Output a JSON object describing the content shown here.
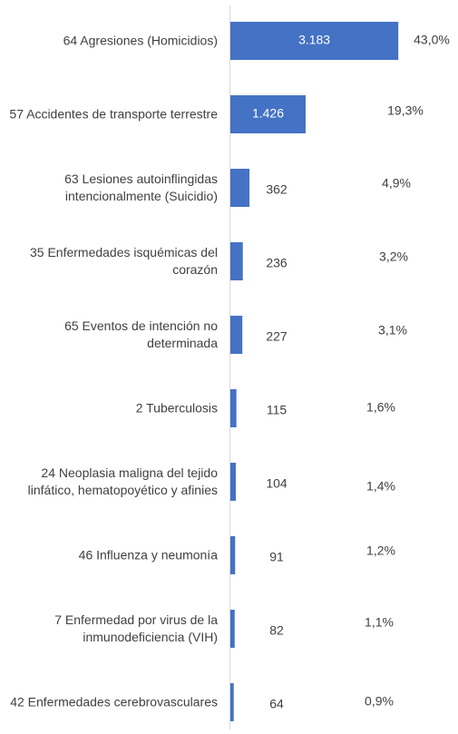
{
  "chart_data": {
    "type": "bar",
    "orientation": "horizontal",
    "categories": [
      "64 Agresiones (Homicidios)",
      "57 Accidentes de transporte terrestre",
      "63 Lesiones autoinflingidas intencionalmente (Suicidio)",
      "35 Enfermedades isquémicas del corazón",
      "65 Eventos de intención no determinada",
      "2 Tuberculosis",
      "24 Neoplasia maligna del tejido linfático, hematopoyético y afinies",
      "46 Influenza y neumonía",
      "7 Enfermedad por virus de la inmunodeficiencia (VIH)",
      "42 Enfermedades cerebrovasculares"
    ],
    "values": [
      3183,
      1426,
      362,
      236,
      227,
      115,
      104,
      91,
      82,
      64
    ],
    "value_labels": [
      "3.183",
      "1.426",
      "362",
      "236",
      "227",
      "115",
      "104",
      "91",
      "82",
      "64"
    ],
    "shares": [
      43.0,
      19.3,
      4.9,
      3.2,
      3.1,
      1.6,
      1.4,
      1.2,
      1.1,
      0.9
    ],
    "share_labels": [
      "43,0%",
      "19,3%",
      "4,9%",
      "3,2%",
      "3,1%",
      "1,6%",
      "1,4%",
      "1,2%",
      "1,1%",
      "0,9%"
    ],
    "color": "#4472c4",
    "xlim": [
      0,
      3300
    ]
  }
}
